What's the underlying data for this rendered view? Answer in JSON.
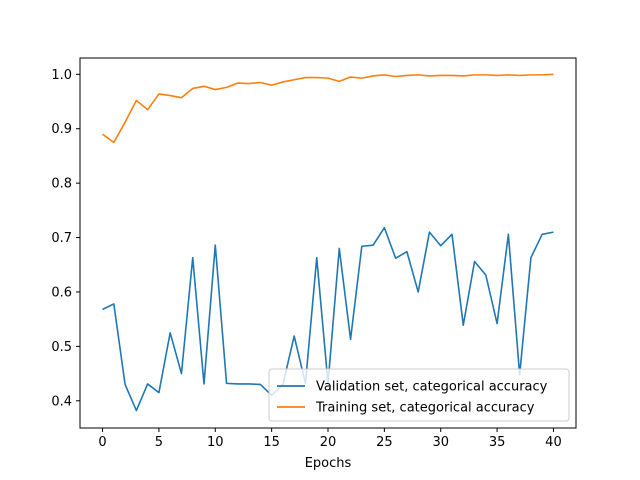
{
  "chart_data": {
    "type": "line",
    "title": "",
    "xlabel": "Epochs",
    "ylabel": "",
    "xlim": [
      -2,
      42
    ],
    "ylim": [
      0.35,
      1.03
    ],
    "xticks": [
      0,
      5,
      10,
      15,
      20,
      25,
      30,
      35,
      40
    ],
    "yticks": [
      0.4,
      0.5,
      0.6,
      0.7,
      0.8,
      0.9,
      1.0
    ],
    "xtick_labels": [
      "0",
      "5",
      "10",
      "15",
      "20",
      "25",
      "30",
      "35",
      "40"
    ],
    "ytick_labels": [
      "0.4",
      "0.5",
      "0.6",
      "0.7",
      "0.8",
      "0.9",
      "1.0"
    ],
    "grid": false,
    "legend_position": "lower-right",
    "x": [
      0,
      1,
      2,
      3,
      4,
      5,
      6,
      7,
      8,
      9,
      10,
      11,
      12,
      13,
      14,
      15,
      16,
      17,
      18,
      19,
      20,
      21,
      22,
      23,
      24,
      25,
      26,
      27,
      28,
      29,
      30,
      31,
      32,
      33,
      34,
      35,
      36,
      37,
      38,
      39,
      40
    ],
    "series": [
      {
        "name": "Validation set, categorical accuracy",
        "color": "#1f77b4",
        "values": [
          0.568,
          0.578,
          0.43,
          0.382,
          0.431,
          0.415,
          0.525,
          0.45,
          0.663,
          0.431,
          0.686,
          0.432,
          0.431,
          0.431,
          0.43,
          0.41,
          0.43,
          0.519,
          0.432,
          0.663,
          0.432,
          0.68,
          0.513,
          0.684,
          0.686,
          0.718,
          0.662,
          0.674,
          0.6,
          0.71,
          0.685,
          0.706,
          0.539,
          0.656,
          0.631,
          0.542,
          0.706,
          0.448,
          0.663,
          0.706,
          0.71
        ]
      },
      {
        "name": "Training set, categorical accuracy",
        "color": "#ff7f0e",
        "values": [
          0.89,
          0.875,
          0.912,
          0.952,
          0.935,
          0.964,
          0.961,
          0.957,
          0.974,
          0.978,
          0.972,
          0.976,
          0.984,
          0.983,
          0.985,
          0.98,
          0.986,
          0.99,
          0.994,
          0.994,
          0.993,
          0.987,
          0.995,
          0.993,
          0.997,
          0.999,
          0.996,
          0.998,
          0.999,
          0.997,
          0.998,
          0.998,
          0.997,
          0.999,
          0.999,
          0.998,
          0.999,
          0.998,
          0.999,
          0.999,
          1.0
        ]
      }
    ]
  }
}
